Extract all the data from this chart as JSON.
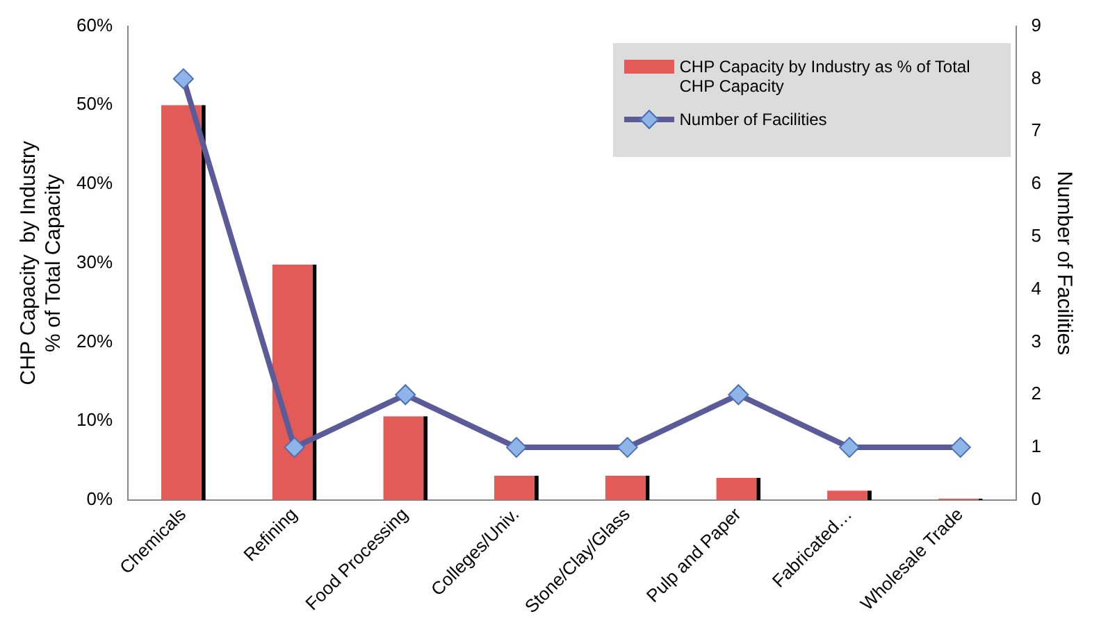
{
  "chart_data": {
    "type": "bar",
    "categories": [
      "Chemicals",
      "Refining",
      "Food Processing",
      "Colleges/Univ.",
      "Stone/Clay/Glass",
      "Pulp and Paper",
      "Fabricated…",
      "Wholesale Trade"
    ],
    "series": [
      {
        "name": "CHP Capacity by Industry  as % of Total CHP Capacity",
        "color": "#e35b57",
        "values": [
          50,
          29.8,
          10.6,
          3.1,
          3.1,
          2.8,
          1.2,
          0.2
        ]
      },
      {
        "name": "Number of Facilities",
        "type": "line",
        "axis": "y2",
        "color": "#5b5b9a",
        "values": [
          8,
          1,
          2,
          1,
          1,
          2,
          1,
          1
        ]
      }
    ],
    "ylabel": "CHP Capacity  by Industry\n% of Total Capacity",
    "y2label": "Number of Facilities",
    "ylim": [
      0,
      60
    ],
    "yticks": [
      {
        "value": 0,
        "label": "0%"
      },
      {
        "value": 10,
        "label": "10%"
      },
      {
        "value": 20,
        "label": "20%"
      },
      {
        "value": 30,
        "label": "30%"
      },
      {
        "value": 40,
        "label": "40%"
      },
      {
        "value": 50,
        "label": "50%"
      },
      {
        "value": 60,
        "label": "60%"
      }
    ],
    "y2lim": [
      0,
      9
    ],
    "y2ticks": [
      0,
      1,
      2,
      3,
      4,
      5,
      6,
      7,
      8,
      9
    ],
    "grid": false,
    "legend": "top right",
    "marker": "diamond",
    "line_style": "solid"
  }
}
